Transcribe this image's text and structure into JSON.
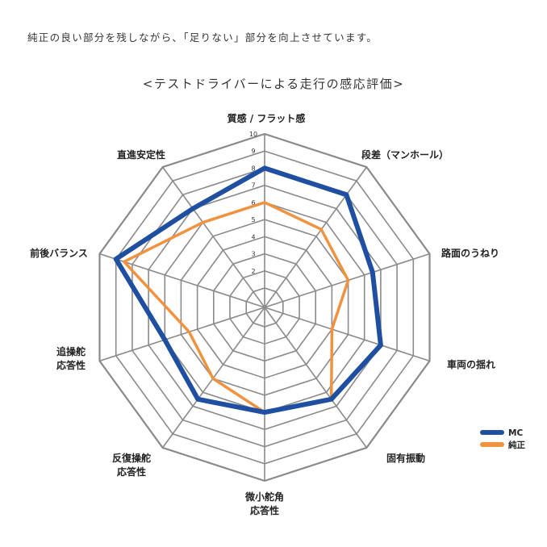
{
  "intro_text": "純正の良い部分を残しながら、「足りない」部分を向上させています。",
  "chart_title": "<テストドライバーによる走行の感応評価>",
  "colors": {
    "mc": "#1f4fa0",
    "stock": "#f0923e",
    "grid": "#8a8a8a"
  },
  "chart_data": {
    "type": "radar",
    "title": "<テストドライバーによる走行の感応評価>",
    "axes": [
      [
        "質感 / フラット感"
      ],
      [
        "段差（マンホール）"
      ],
      [
        "路面のうねり"
      ],
      [
        "車両の揺れ"
      ],
      [
        "固有振動"
      ],
      [
        "微小舵角",
        "応答性"
      ],
      [
        "反復操舵",
        "応答性"
      ],
      [
        "追操舵",
        "応答性"
      ],
      [
        "前後バランス"
      ],
      [
        "直進安定性"
      ]
    ],
    "rlim": [
      1,
      10
    ],
    "ticks": [
      "2",
      "3",
      "4",
      "5",
      "6",
      "7",
      "8",
      "9",
      "10"
    ],
    "grid": true,
    "legend_position": "bottom-right",
    "series": [
      {
        "name": "MC",
        "color": "#1f4fa0",
        "values": [
          8,
          8,
          6.5,
          7,
          6.5,
          6,
          6.5,
          6,
          9,
          7
        ]
      },
      {
        "name": "純正",
        "color": "#f0923e",
        "values": [
          6,
          5.5,
          5,
          4,
          6.5,
          6,
          5,
          4.5,
          8.5,
          6
        ]
      }
    ]
  },
  "legend": [
    {
      "label": "MC",
      "color": "#1f4fa0"
    },
    {
      "label": "純正",
      "color": "#f0923e"
    }
  ]
}
